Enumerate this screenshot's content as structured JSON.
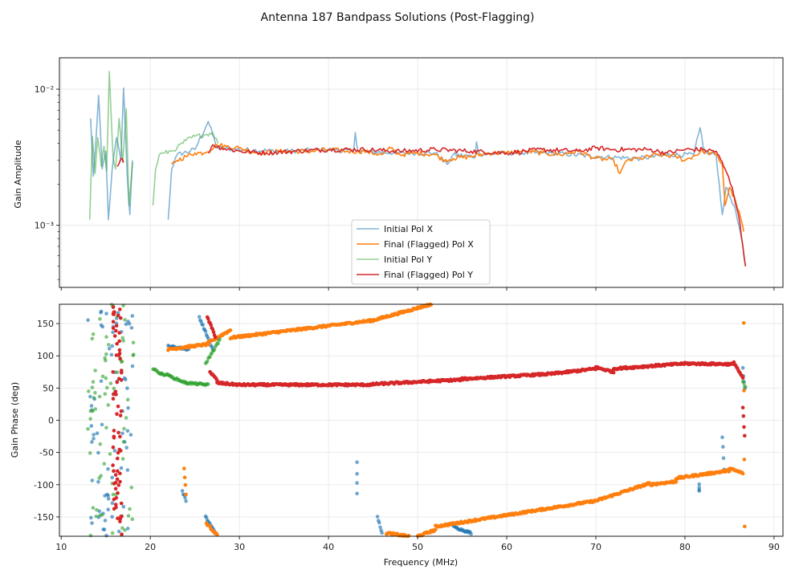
{
  "chart_data": {
    "title": "Antenna 187 Bandpass Solutions (Post-Flagging)",
    "colors": {
      "pol_x_initial": "#1f77b4",
      "pol_x_final": "#ff7f0e",
      "pol_y_initial": "#2ca02c",
      "pol_y_final": "#d62728"
    },
    "panels": [
      {
        "type": "line",
        "ylabel": "Gain Amplitude",
        "yscale": "log",
        "xlim": [
          9.8,
          91
        ],
        "ylim": [
          0.00035,
          0.017
        ],
        "yticks": [
          {
            "v": 0.001,
            "label": "10⁻³"
          },
          {
            "v": 0.01,
            "label": "10⁻²"
          }
        ],
        "legend_loc": "lower-center",
        "series": [
          {
            "name": "Initial Pol X",
            "color": "#1f77b4",
            "alpha": 0.55,
            "points": [
              [
                13.3,
                0.0061
              ],
              [
                13.6,
                0.0023
              ],
              [
                13.9,
                0.0042
              ],
              [
                14.2,
                0.009
              ],
              [
                14.6,
                0.0026
              ],
              [
                15.0,
                0.0035
              ],
              [
                15.3,
                0.0011
              ],
              [
                15.7,
                0.0025
              ],
              [
                16.2,
                0.0044
              ],
              [
                16.7,
                0.003
              ],
              [
                17.0,
                0.0102
              ],
              [
                17.4,
                0.0024
              ],
              [
                17.7,
                0.0012
              ],
              [
                18.0,
                0.003
              ],
              null,
              [
                22.0,
                0.0011
              ],
              [
                22.4,
                0.0026
              ],
              [
                23.0,
                0.0033
              ],
              [
                25.0,
                0.0036
              ],
              [
                26.5,
                0.0058
              ],
              [
                27.5,
                0.0037
              ],
              [
                30,
                0.0036
              ],
              [
                35,
                0.0035
              ],
              [
                40,
                0.0036
              ],
              [
                42.8,
                0.0035
              ],
              [
                43.0,
                0.0048
              ],
              [
                43.3,
                0.0035
              ],
              [
                48,
                0.0034
              ],
              [
                52,
                0.0034
              ],
              [
                53.3,
                0.0028
              ],
              [
                54,
                0.0033
              ],
              [
                56.5,
                0.0032
              ],
              [
                56.6,
                0.0041
              ],
              [
                57,
                0.0033
              ],
              [
                60,
                0.0034
              ],
              [
                65,
                0.0034
              ],
              [
                70,
                0.0032
              ],
              [
                75,
                0.0031
              ],
              [
                78,
                0.0033
              ],
              [
                81,
                0.0033
              ],
              [
                81.7,
                0.0052
              ],
              [
                82.2,
                0.0034
              ],
              [
                83.5,
                0.0033
              ],
              [
                84.2,
                0.0012
              ],
              [
                84.6,
                0.0019
              ],
              [
                85.5,
                0.0014
              ],
              [
                86.2,
                0.0009
              ],
              [
                86.8,
                0.0005
              ]
            ]
          },
          {
            "name": "Final (Flagged) Pol X",
            "color": "#ff7f0e",
            "alpha": 1.0,
            "points": [
              [
                22.4,
                0.0028
              ],
              [
                23,
                0.003
              ],
              [
                24,
                0.0032
              ],
              [
                25,
                0.0034
              ],
              [
                26,
                0.0034
              ],
              [
                27.5,
                0.0039
              ],
              [
                28.5,
                0.0038
              ],
              [
                30,
                0.0037
              ],
              [
                32,
                0.0034
              ],
              [
                35,
                0.0035
              ],
              [
                38,
                0.0035
              ],
              [
                40,
                0.0036
              ],
              [
                42,
                0.0035
              ],
              [
                44,
                0.0035
              ],
              [
                46,
                0.0033
              ],
              [
                47,
                0.0037
              ],
              [
                48,
                0.0033
              ],
              [
                50,
                0.0034
              ],
              [
                52,
                0.0033
              ],
              [
                53,
                0.003
              ],
              [
                54,
                0.0031
              ],
              [
                56,
                0.0032
              ],
              [
                58,
                0.0034
              ],
              [
                60,
                0.0034
              ],
              [
                62,
                0.0035
              ],
              [
                64,
                0.0034
              ],
              [
                66,
                0.0033
              ],
              [
                68,
                0.0035
              ],
              [
                70,
                0.0031
              ],
              [
                72,
                0.003
              ],
              [
                72.7,
                0.0024
              ],
              [
                73.5,
                0.003
              ],
              [
                75,
                0.0031
              ],
              [
                77,
                0.0033
              ],
              [
                79,
                0.0032
              ],
              [
                80,
                0.003
              ],
              [
                82,
                0.0035
              ],
              [
                83.5,
                0.0033
              ],
              [
                84.2,
                0.0028
              ],
              [
                84.5,
                0.0014
              ],
              [
                85,
                0.0019
              ],
              [
                85.7,
                0.0015
              ],
              [
                86.3,
                0.0011
              ],
              [
                86.6,
                0.0009
              ]
            ]
          },
          {
            "name": "Initial Pol Y",
            "color": "#2ca02c",
            "alpha": 0.5,
            "points": [
              [
                13.2,
                0.0011
              ],
              [
                13.5,
                0.0045
              ],
              [
                13.8,
                0.0024
              ],
              [
                14.1,
                0.0044
              ],
              [
                14.5,
                0.0027
              ],
              [
                14.8,
                0.0038
              ],
              [
                15.1,
                0.0025
              ],
              [
                15.4,
                0.0135
              ],
              [
                15.8,
                0.0033
              ],
              [
                16.1,
                0.0026
              ],
              [
                16.5,
                0.0061
              ],
              [
                16.9,
                0.0029
              ],
              [
                17.3,
                0.0072
              ],
              [
                17.6,
                0.0014
              ],
              [
                18.0,
                0.0029
              ],
              null,
              [
                20.3,
                0.0014
              ],
              [
                20.6,
                0.0026
              ],
              [
                21.0,
                0.0033
              ],
              [
                21.6,
                0.0034
              ],
              [
                22.3,
                0.0035
              ],
              [
                23,
                0.0037
              ],
              [
                24,
                0.0042
              ],
              [
                25,
                0.0045
              ],
              [
                26,
                0.0046
              ],
              [
                27,
                0.0048
              ],
              [
                27.6,
                0.004
              ]
            ]
          },
          {
            "name": "Final (Flagged) Pol Y",
            "color": "#d62728",
            "alpha": 1.0,
            "points": [
              [
                16.3,
                0.0027
              ],
              [
                16.7,
                0.0031
              ],
              [
                17.0,
                0.0029
              ],
              null,
              [
                26.5,
                0.0034
              ],
              [
                27,
                0.0039
              ],
              [
                28,
                0.0037
              ],
              [
                30,
                0.0035
              ],
              [
                33,
                0.0034
              ],
              [
                36,
                0.0035
              ],
              [
                40,
                0.0036
              ],
              [
                44,
                0.0036
              ],
              [
                48,
                0.0035
              ],
              [
                52,
                0.0036
              ],
              [
                56,
                0.0035
              ],
              [
                60,
                0.0034
              ],
              [
                64,
                0.0036
              ],
              [
                68,
                0.0035
              ],
              [
                70,
                0.0037
              ],
              [
                72,
                0.0036
              ],
              [
                76,
                0.0036
              ],
              [
                78,
                0.0034
              ],
              [
                80,
                0.0036
              ],
              [
                82,
                0.0036
              ],
              [
                83.5,
                0.0035
              ],
              [
                84.5,
                0.0026
              ],
              [
                85.3,
                0.0019
              ],
              [
                86.0,
                0.0012
              ],
              [
                86.5,
                0.0007
              ],
              [
                86.8,
                0.0005
              ]
            ]
          }
        ]
      },
      {
        "type": "scatter",
        "ylabel": "Gain Phase (deg)",
        "xlabel": "Frequency (MHz)",
        "xlim": [
          9.8,
          91
        ],
        "ylim": [
          -180,
          180
        ],
        "xticks": [
          10,
          20,
          30,
          40,
          50,
          60,
          70,
          80,
          90
        ],
        "yticks": [
          -150,
          -100,
          -50,
          0,
          50,
          100,
          150
        ],
        "series": [
          {
            "name": "Initial Pol X",
            "color": "#1f77b4",
            "alpha": 0.65,
            "segments": [
              [
                13,
                18.2,
                -180,
                180,
                "noise"
              ],
              [
                22,
                24.3,
                115,
                110
              ],
              [
                23.6,
                24,
                -110,
                -125
              ],
              [
                25.5,
                27,
                160,
                110
              ],
              [
                26.2,
                27.3,
                -150,
                -175
              ],
              [
                43.2,
                43.2,
                -65,
                -115
              ],
              [
                45.5,
                46,
                -150,
                -175
              ],
              [
                54,
                56,
                -165,
                -175
              ],
              [
                81.6,
                81.6,
                -100,
                -110
              ],
              [
                84.2,
                84.4,
                -25,
                -75
              ],
              [
                86.5,
                86.7,
                80,
                50
              ]
            ]
          },
          {
            "name": "Final (Flagged) Pol X",
            "color": "#ff7f0e",
            "alpha": 1.0,
            "segments": [
              [
                22,
                26.5,
                110,
                118
              ],
              [
                26.5,
                29,
                120,
                140
              ],
              [
                29,
                45,
                128,
                155
              ],
              [
                45,
                51.5,
                155,
                180
              ],
              [
                23.8,
                24,
                -75,
                -115
              ],
              [
                26.3,
                27.5,
                -160,
                -178
              ],
              [
                46.5,
                49,
                -175,
                -180
              ],
              [
                50,
                52,
                -180,
                -170
              ],
              [
                52,
                70,
                -165,
                -125
              ],
              [
                70,
                76,
                -125,
                -98
              ],
              [
                76,
                79,
                -100,
                -95
              ],
              [
                79,
                85,
                -90,
                -78
              ],
              [
                85,
                86.5,
                -75,
                -82
              ],
              [
                86.6,
                86.7,
                150,
                -165
              ]
            ]
          },
          {
            "name": "Initial Pol Y",
            "color": "#2ca02c",
            "alpha": 0.6,
            "segments": [
              [
                13,
                18.2,
                -180,
                180,
                "noise"
              ],
              [
                20.3,
                21.2,
                80,
                72
              ],
              [
                21.2,
                22.2,
                72,
                70
              ],
              [
                22.2,
                24,
                68,
                58
              ],
              [
                24,
                26.5,
                58,
                55
              ],
              [
                26.2,
                27.8,
                88,
                125
              ],
              [
                86.5,
                86.8,
                60,
                50
              ]
            ]
          },
          {
            "name": "Final (Flagged) Pol Y",
            "color": "#d62728",
            "alpha": 1.0,
            "segments": [
              [
                15.8,
                16.8,
                -180,
                180,
                "noise"
              ],
              [
                26.4,
                27.3,
                160,
                130
              ],
              [
                26.7,
                27.5,
                75,
                62
              ],
              [
                27.5,
                30,
                58,
                55
              ],
              [
                30,
                45,
                55,
                55
              ],
              [
                45,
                55,
                56,
                63
              ],
              [
                55,
                65,
                64,
                72
              ],
              [
                65,
                70,
                72,
                80
              ],
              [
                70,
                72,
                82,
                75
              ],
              [
                72,
                80,
                80,
                88
              ],
              [
                80,
                85.5,
                88,
                87
              ],
              [
                85.5,
                86.5,
                90,
                65
              ],
              [
                86.5,
                86.7,
                20,
                -25
              ]
            ]
          }
        ]
      }
    ]
  }
}
